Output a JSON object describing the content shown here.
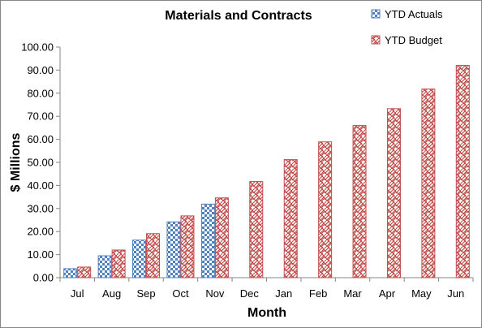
{
  "chart_data": {
    "type": "bar",
    "title": "Materials and Contracts",
    "xlabel": "Month",
    "ylabel": "$ Millions",
    "ylim": [
      0,
      100
    ],
    "yticks": [
      "0.00",
      "10.00",
      "20.00",
      "30.00",
      "40.00",
      "50.00",
      "60.00",
      "70.00",
      "80.00",
      "90.00",
      "100.00"
    ],
    "categories": [
      "Jul",
      "Aug",
      "Sep",
      "Oct",
      "Nov",
      "Dec",
      "Jan",
      "Feb",
      "Mar",
      "Apr",
      "May",
      "Jun"
    ],
    "series": [
      {
        "name": "YTD Actuals",
        "color": "#4f81bd",
        "pattern": "checker",
        "values": [
          3.9,
          9.5,
          16.3,
          24.2,
          31.9,
          null,
          null,
          null,
          null,
          null,
          null,
          null
        ]
      },
      {
        "name": "YTD Budget",
        "color": "#c0504d",
        "pattern": "weave",
        "values": [
          4.6,
          12.0,
          19.1,
          26.8,
          34.6,
          41.7,
          51.2,
          58.9,
          66.0,
          73.3,
          81.8,
          92.1
        ]
      }
    ],
    "grid": false,
    "legend": "top-right"
  }
}
